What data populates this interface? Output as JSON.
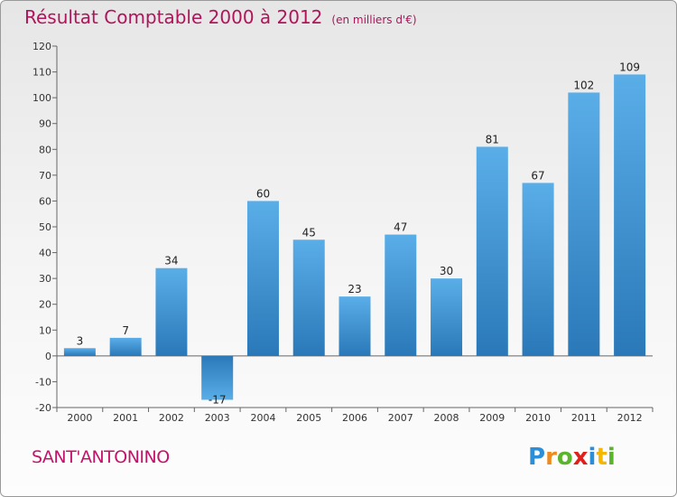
{
  "title": "Résultat Comptable 2000 à 2012",
  "unit": "(en milliers d'€)",
  "commune": "SANT'ANTONINO",
  "logo": {
    "letters": [
      "P",
      "r",
      "o",
      "x",
      "i",
      "t",
      "i"
    ],
    "colors": [
      "#2a8fd8",
      "#f08a1c",
      "#5ab52c",
      "#e0201c",
      "#2a8fd8",
      "#f5b800",
      "#5ab52c"
    ]
  },
  "colors": {
    "bar_light": "#5aaee8",
    "bar_dark": "#2a78b8",
    "accent": "#b0145a"
  },
  "chart_data": {
    "type": "bar",
    "title": "Résultat Comptable 2000 à 2012",
    "xlabel": "",
    "ylabel": "",
    "categories": [
      "2000",
      "2001",
      "2002",
      "2003",
      "2004",
      "2005",
      "2006",
      "2007",
      "2008",
      "2009",
      "2010",
      "2011",
      "2012"
    ],
    "values": [
      3,
      7,
      34,
      -17,
      60,
      45,
      23,
      47,
      30,
      81,
      67,
      102,
      109
    ],
    "ylim": [
      -20,
      120
    ],
    "yticks": [
      -20,
      -10,
      0,
      10,
      20,
      30,
      40,
      50,
      60,
      70,
      80,
      90,
      100,
      110,
      120
    ],
    "grid": false,
    "legend": "none"
  }
}
